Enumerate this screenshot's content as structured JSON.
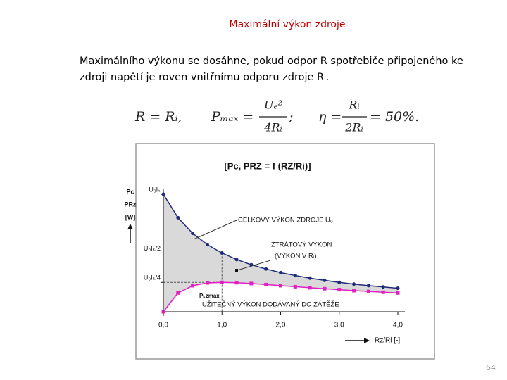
{
  "title": "Maximální výkon zdroje",
  "paragraph": [
    "Maximálního výkonu se dosáhne, pokud odpor R spotřebiče připojeného ke",
    "zdroji napětí je roven vnitřnímu odporu zdroje Rᵢ."
  ],
  "formula_1": "R = Rᵢ,",
  "formula_2": {
    "lhs": "Pₘₐₓ =",
    "num": "Uₑ²",
    "den": "4Rᵢ",
    "end": ";"
  },
  "formula_3": {
    "lhs": "η =",
    "num": "Rᵢ",
    "den": "2Rᵢ",
    "end": "= 50%."
  },
  "page_number": "64",
  "chart_data": {
    "type": "line",
    "title": "[Pc, PRZ = f (RZ/Ri)]",
    "y_label": [
      "Pc",
      "PRz",
      "[W]"
    ],
    "x_label": "Rz/Ri [-]",
    "x": [
      0,
      0.25,
      0.5,
      0.75,
      1,
      1.25,
      1.5,
      1.75,
      2,
      2.25,
      2.5,
      2.75,
      3,
      3.25,
      3.5,
      3.75,
      4
    ],
    "series": [
      {
        "color": "#1f2a7a",
        "values": [
          1,
          0.8,
          0.667,
          0.571,
          0.5,
          0.444,
          0.4,
          0.364,
          0.333,
          0.308,
          0.286,
          0.267,
          0.25,
          0.235,
          0.222,
          0.211,
          0.2
        ]
      },
      {
        "color": "#e020c0",
        "values": [
          0,
          0.16,
          0.222,
          0.245,
          0.25,
          0.247,
          0.24,
          0.231,
          0.222,
          0.213,
          0.204,
          0.196,
          0.188,
          0.18,
          0.173,
          0.166,
          0.16
        ]
      }
    ],
    "xlim": [
      0,
      4
    ],
    "ylim": [
      0,
      1
    ],
    "xticks": [
      {
        "value": 0,
        "label": "0,0"
      },
      {
        "value": 1,
        "label": "1,0"
      },
      {
        "value": 2,
        "label": "2,0"
      },
      {
        "value": 3,
        "label": "3,0"
      },
      {
        "value": 4,
        "label": "4,0"
      }
    ],
    "yticks": [
      {
        "value": 1,
        "label": "U₀Iₖ"
      },
      {
        "value": 0.5,
        "label": "U₀Iₖ/2"
      },
      {
        "value": 0.25,
        "label": "U₀Iₖ/4"
      }
    ],
    "fill_color": "#d9d9d9",
    "annotations": [
      "CELKOVÝ VÝKON ZDROJE U₀",
      "ZTRÁTOVÝ VÝKON",
      "(VÝKON V Rᵢ)",
      "Pₖzmax",
      "UŽITEČNÝ VÝKON DODÁVANÝ DO ZÁTĚŽE"
    ]
  }
}
